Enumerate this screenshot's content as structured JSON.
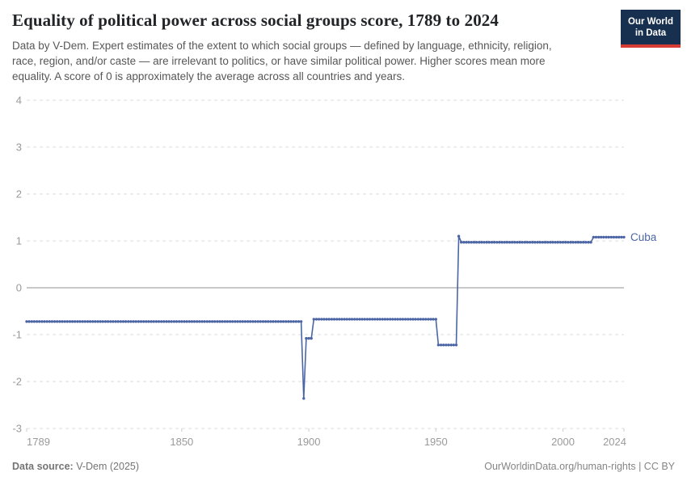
{
  "header": {
    "title": "Equality of political power across social groups score, 1789 to 2024",
    "subtitle_lines": [
      "Data by V-Dem. Expert estimates of the extent to which social groups — defined by language, ethnicity, religion,",
      "race, region, and/or caste — are irrelevant to politics, or have similar political power. Higher scores mean more",
      "equality. A score of 0 is approximately the average across all countries and years."
    ],
    "logo": {
      "line1": "Our World",
      "line2": "in Data",
      "bg_color": "#18304f",
      "accent_color": "#d73c34"
    }
  },
  "footer": {
    "source_label": "Data source:",
    "source_value": " V-Dem (2025)",
    "credit": "OurWorldinData.org/human-rights | CC BY"
  },
  "chart_data": {
    "type": "line",
    "title": "Equality of political power across social groups score",
    "entity": "Cuba",
    "xlim": [
      1789,
      2024
    ],
    "ylim": [
      -3,
      4
    ],
    "x_ticks": [
      1789,
      1850,
      1900,
      1950,
      2000,
      2024
    ],
    "y_ticks": [
      4,
      3,
      2,
      1,
      0,
      -1,
      -2,
      -3
    ],
    "grid": "dashed horizontal, solid zero line",
    "legend_position": "end-of-line label",
    "line_color": "#4c66a5",
    "label_color": "#4c66a5",
    "grid_color": "#dddddd",
    "zero_line_color": "#919191",
    "axis_text_color": "#9a9a9a",
    "tick_mark_color": "#cccccc",
    "series": [
      {
        "name": "Cuba",
        "segments": [
          {
            "from": 1789,
            "to": 1897,
            "value": -0.72
          },
          {
            "from": 1898,
            "to": 1898,
            "value": -2.36
          },
          {
            "from": 1899,
            "to": 1901,
            "value": -1.08
          },
          {
            "from": 1902,
            "to": 1950,
            "value": -0.67
          },
          {
            "from": 1951,
            "to": 1958,
            "value": -1.22
          },
          {
            "from": 1959,
            "to": 1959,
            "value": 1.1
          },
          {
            "from": 1960,
            "to": 2011,
            "value": 0.97
          },
          {
            "from": 2012,
            "to": 2024,
            "value": 1.08
          }
        ]
      }
    ]
  }
}
